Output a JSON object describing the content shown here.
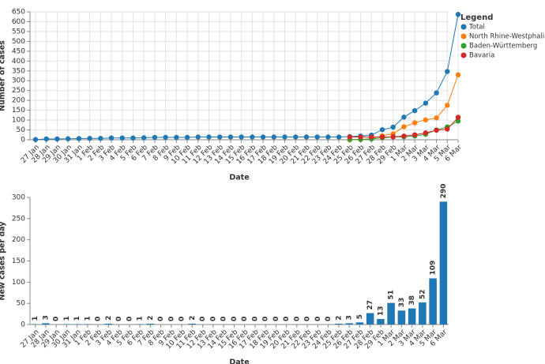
{
  "chart_data": [
    {
      "type": "line",
      "x_label": "Date",
      "y_label": "Number of cases",
      "legend_title": "Legend",
      "legend": "right",
      "grid": true,
      "categories": [
        "27 Jan",
        "28 Jan",
        "29 Jan",
        "30 Jan",
        "31 Jan",
        "1 Feb",
        "2 Feb",
        "3 Feb",
        "4 Feb",
        "5 Feb",
        "6 Feb",
        "7 Feb",
        "8 Feb",
        "9 Feb",
        "10 Feb",
        "11 Feb",
        "12 Feb",
        "13 Feb",
        "14 Feb",
        "15 Feb",
        "16 Feb",
        "17 Feb",
        "18 Feb",
        "19 Feb",
        "20 Feb",
        "21 Feb",
        "22 Feb",
        "23 Feb",
        "24 Feb",
        "25 Feb",
        "26 Feb",
        "27 Feb",
        "28 Feb",
        "29 Feb",
        "1 Mar",
        "2 Mar",
        "3 Mar",
        "4 Mar",
        "5 Mar",
        "6 Mar"
      ],
      "ylim": [
        0,
        650
      ],
      "yticks": [
        0,
        50,
        100,
        150,
        200,
        250,
        300,
        350,
        400,
        450,
        500,
        550,
        600,
        650
      ],
      "series": [
        {
          "name": "Total",
          "color": "#1f77b4",
          "values": [
            1,
            4,
            4,
            5,
            6,
            7,
            7,
            9,
            9,
            9,
            10,
            12,
            12,
            12,
            12,
            14,
            14,
            14,
            14,
            14,
            14,
            14,
            14,
            14,
            14,
            14,
            14,
            14,
            14,
            16,
            19,
            24,
            51,
            64,
            115,
            148,
            186,
            238,
            347,
            637
          ]
        },
        {
          "name": "North Rhine-Westphalia",
          "color": "#ff7f0e",
          "values": [
            null,
            null,
            null,
            null,
            null,
            null,
            null,
            null,
            null,
            null,
            null,
            null,
            null,
            null,
            null,
            null,
            null,
            null,
            null,
            null,
            null,
            null,
            null,
            null,
            null,
            null,
            null,
            null,
            null,
            0,
            1,
            6,
            20,
            30,
            66,
            86,
            101,
            111,
            175,
            330
          ]
        },
        {
          "name": "Baden-Württemberg",
          "color": "#2ca02c",
          "values": [
            null,
            null,
            null,
            null,
            null,
            null,
            null,
            null,
            null,
            null,
            null,
            null,
            null,
            null,
            null,
            null,
            null,
            null,
            null,
            null,
            null,
            null,
            null,
            null,
            null,
            null,
            null,
            null,
            null,
            1,
            2,
            4,
            10,
            14,
            15,
            19,
            28,
            50,
            65,
            95
          ]
        },
        {
          "name": "Bavaria",
          "color": "#d62728",
          "values": [
            null,
            null,
            null,
            null,
            null,
            null,
            null,
            null,
            null,
            null,
            null,
            null,
            null,
            null,
            null,
            null,
            null,
            null,
            null,
            null,
            null,
            null,
            null,
            null,
            null,
            null,
            null,
            null,
            null,
            14,
            14,
            14,
            14,
            15,
            19,
            25,
            35,
            48,
            54,
            114
          ]
        }
      ]
    },
    {
      "type": "bar",
      "x_label": "Date",
      "y_label": "New cases per day",
      "grid": false,
      "color": "#1f77b4",
      "categories": [
        "27 Jan",
        "28 Jan",
        "29 Jan",
        "30 Jan",
        "31 Jan",
        "1 Feb",
        "2 Feb",
        "3 Feb",
        "4 Feb",
        "5 Feb",
        "6 Feb",
        "7 Feb",
        "8 Feb",
        "9 Feb",
        "10 Feb",
        "11 Feb",
        "12 Feb",
        "13 Feb",
        "14 Feb",
        "15 Feb",
        "16 Feb",
        "17 Feb",
        "18 Feb",
        "19 Feb",
        "20 Feb",
        "21 Feb",
        "22 Feb",
        "23 Feb",
        "24 Feb",
        "25 Feb",
        "26 Feb",
        "27 Feb",
        "28 Feb",
        "29 Feb",
        "1 Mar",
        "2 Mar",
        "3 Mar",
        "4 Mar",
        "5 Mar",
        "6 Mar"
      ],
      "ylim": [
        0,
        300
      ],
      "yticks": [
        0,
        50,
        100,
        150,
        200,
        250,
        300
      ],
      "values": [
        1,
        3,
        0,
        1,
        1,
        1,
        0,
        2,
        0,
        0,
        1,
        2,
        0,
        0,
        0,
        2,
        0,
        0,
        0,
        0,
        0,
        0,
        0,
        0,
        0,
        0,
        0,
        0,
        0,
        2,
        3,
        5,
        27,
        13,
        51,
        33,
        38,
        52,
        109,
        290
      ]
    }
  ]
}
